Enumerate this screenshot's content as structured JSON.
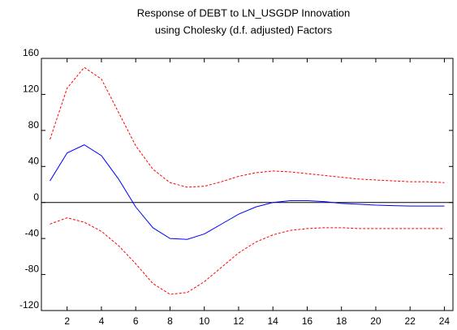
{
  "chart_data": {
    "type": "line",
    "title": "Response of DEBT to LN_USGDP Innovation",
    "subtitle": "using Cholesky (d.f. adjusted) Factors",
    "x": [
      1,
      2,
      3,
      4,
      5,
      6,
      7,
      8,
      9,
      10,
      11,
      12,
      13,
      14,
      15,
      16,
      17,
      18,
      19,
      20,
      21,
      22,
      23,
      24
    ],
    "series": [
      {
        "color": "#ff0000",
        "dashed": true,
        "values": [
          70,
          127,
          150,
          137,
          100,
          63,
          37,
          22,
          17,
          18,
          23,
          29,
          33,
          35,
          34,
          32,
          30,
          28,
          26,
          25,
          24,
          23,
          23,
          22
        ]
      },
      {
        "color": "#0000ff",
        "dashed": false,
        "values": [
          24,
          55,
          64,
          52,
          26,
          -5,
          -28,
          -40,
          -41,
          -35,
          -24,
          -13,
          -5,
          0,
          2,
          2,
          1,
          -1,
          -2,
          -3,
          -3.5,
          -4,
          -4,
          -4
        ]
      },
      {
        "color": "#ff0000",
        "dashed": true,
        "values": [
          -24,
          -17,
          -22,
          -32,
          -48,
          -68,
          -90,
          -102,
          -100,
          -88,
          -72,
          -56,
          -44,
          -36,
          -31,
          -29,
          -28,
          -28,
          -29,
          -29,
          -29,
          -29,
          -29,
          -29
        ]
      }
    ],
    "xlim": [
      0.5,
      24.5
    ],
    "xticks": [
      2,
      4,
      6,
      8,
      10,
      12,
      14,
      16,
      18,
      20,
      22,
      24
    ],
    "ylim": [
      -120,
      160
    ],
    "yticks": [
      -120,
      -80,
      -40,
      0,
      40,
      80,
      120,
      160
    ]
  }
}
